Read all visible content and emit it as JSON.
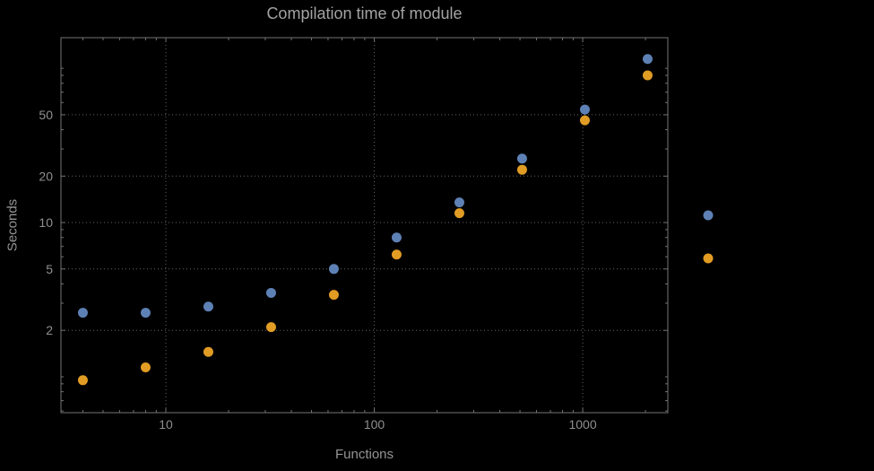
{
  "chart_data": {
    "type": "scatter",
    "title": "Compilation time of module",
    "xlabel": "Functions",
    "ylabel": "Seconds",
    "x_scale": "log",
    "y_scale": "log",
    "xlim": [
      3.14,
      2560
    ],
    "ylim": [
      0.585,
      158
    ],
    "x_ticks": [
      {
        "value": 10,
        "label": "10"
      },
      {
        "value": 100,
        "label": "100"
      },
      {
        "value": 1000,
        "label": "1000"
      }
    ],
    "y_ticks": [
      {
        "value": 2,
        "label": "2"
      },
      {
        "value": 5,
        "label": "5"
      },
      {
        "value": 10,
        "label": "10"
      },
      {
        "value": 20,
        "label": "20"
      },
      {
        "value": 50,
        "label": "50"
      }
    ],
    "grid": {
      "show": true,
      "style": "dotted",
      "x_lines": [
        10,
        100,
        1000
      ],
      "y_lines": [
        2,
        5,
        10,
        20,
        50
      ]
    },
    "x": [
      4,
      8,
      16,
      32,
      64,
      128,
      256,
      512,
      1024,
      2048
    ],
    "series": [
      {
        "name": "series-blue",
        "color": "#5e81b5",
        "values": [
          2.6,
          2.6,
          2.85,
          3.5,
          5.0,
          8.0,
          13.5,
          26,
          54,
          115
        ]
      },
      {
        "name": "series-orange",
        "color": "#e19c24",
        "values": [
          0.95,
          1.15,
          1.45,
          2.1,
          3.4,
          6.2,
          11.5,
          22,
          46,
          90
        ]
      }
    ],
    "legend": {
      "position": "right-outside",
      "entries": [
        {
          "series": "series-blue",
          "label": ""
        },
        {
          "series": "series-orange",
          "label": ""
        }
      ]
    },
    "marker": {
      "shape": "circle",
      "radius": 5.5
    }
  },
  "colors": {
    "background": "#000000",
    "frame": "#737373",
    "grid": "#646464",
    "tick_text": "#8f8f8f",
    "title_text": "#a3a3a3",
    "axis_label_text": "#949494"
  }
}
